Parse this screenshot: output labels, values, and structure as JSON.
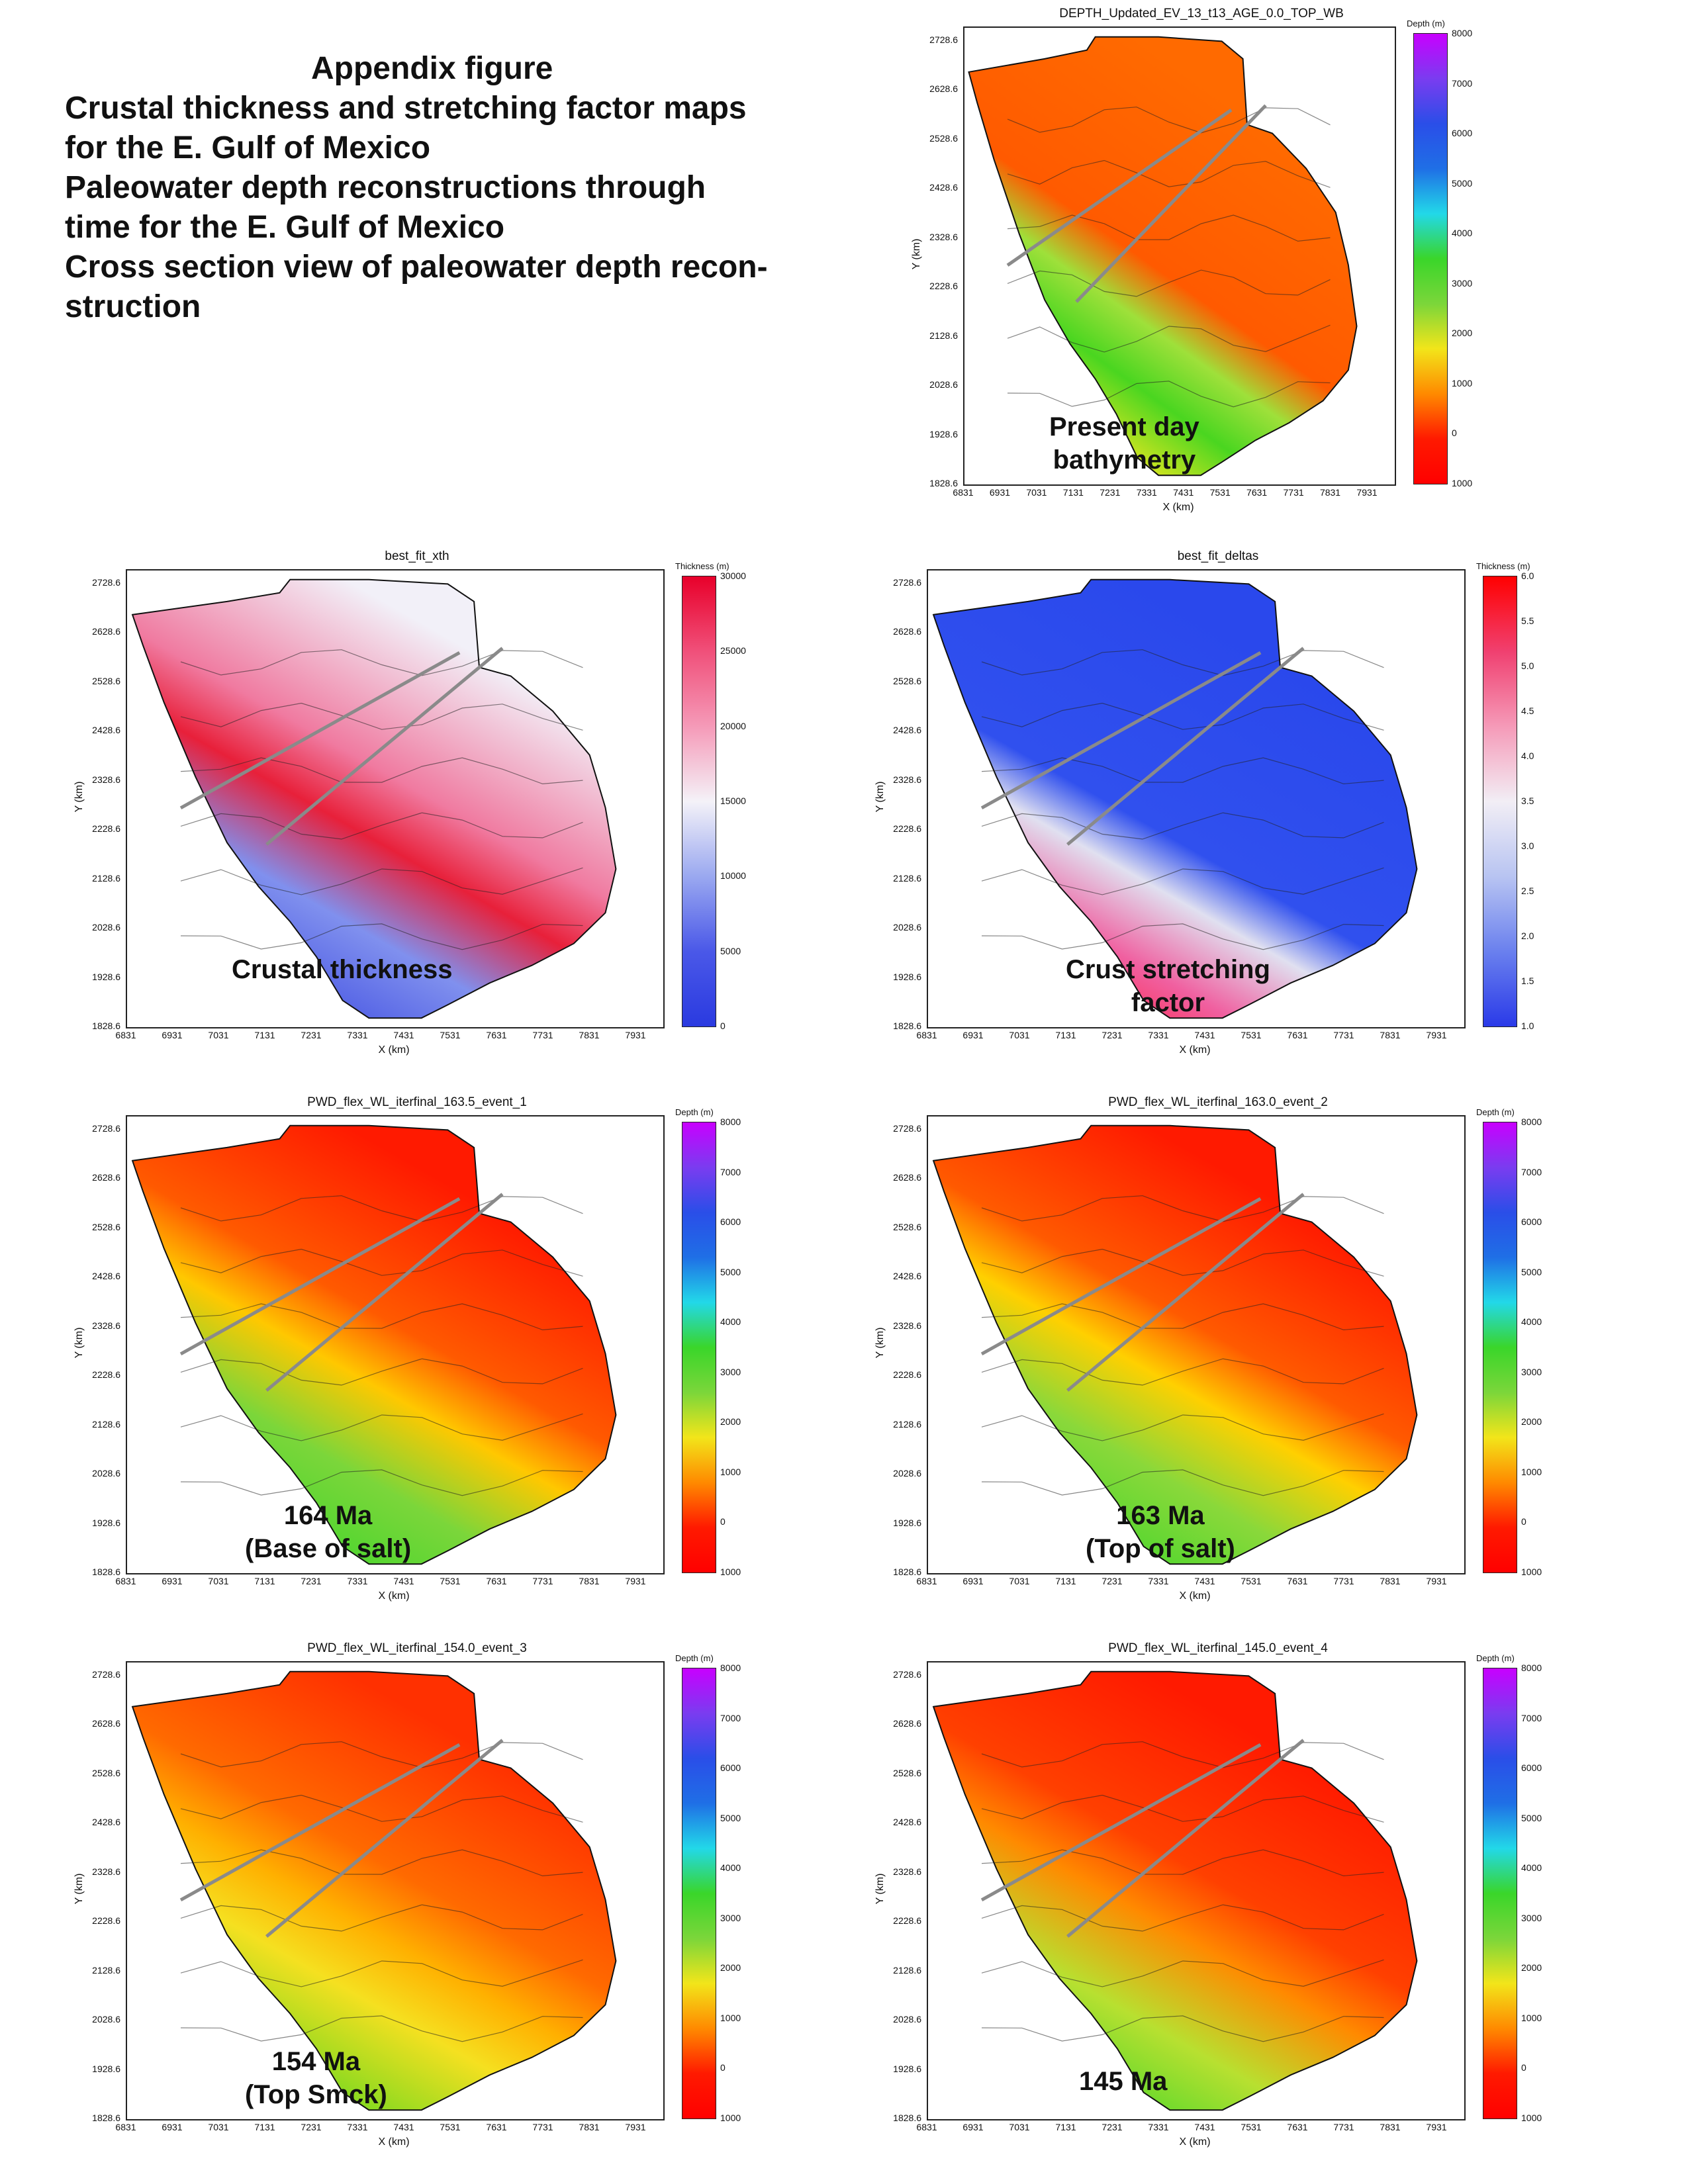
{
  "appendix": {
    "heading": "Appendix figure",
    "lines": [
      "Crustal thickness and stretching factor maps",
      "for the E. Gulf of Mexico",
      "Paleowater depth reconstructions through",
      "time for the E. Gulf of Mexico",
      "Cross section view of paleowater depth recon-",
      "struction"
    ]
  },
  "axes": {
    "xlabel": "X (km)",
    "ylabel": "Y (km)",
    "xticks": [
      "6831",
      "6931",
      "7031",
      "7131",
      "7231",
      "7331",
      "7431",
      "7531",
      "7631",
      "7731",
      "7831",
      "7931"
    ],
    "yticks": [
      "2728.6",
      "2628.6",
      "2528.6",
      "2428.6",
      "2328.6",
      "2228.6",
      "2128.6",
      "2028.6",
      "1928.6",
      "1828.6"
    ]
  },
  "colorbars": {
    "depth": {
      "label": "Depth (m)",
      "ticks": [
        "8000",
        "7000",
        "6000",
        "5000",
        "4000",
        "3000",
        "2000",
        "1000",
        "0",
        "1000"
      ]
    },
    "thickness": {
      "label": "Thickness (m)",
      "ticks": [
        "30000",
        "25000",
        "20000",
        "15000",
        "10000",
        "5000",
        "0"
      ]
    },
    "stretch": {
      "label": "Thickness (m)",
      "ticks": [
        "6.0",
        "5.5",
        "5.0",
        "4.5",
        "4.0",
        "3.5",
        "3.0",
        "2.5",
        "2.0",
        "1.5",
        "1.0"
      ]
    }
  },
  "panels": [
    {
      "id": "bathy",
      "title": "DEPTH_Updated_EV_13_t13_AGE_0.0_TOP_WB",
      "cb": "depth",
      "annot": [
        "Present day",
        "bathymetry"
      ]
    },
    {
      "id": "xth",
      "title": "best_fit_xth",
      "cb": "thickness",
      "annot": [
        "Crustal thickness"
      ]
    },
    {
      "id": "deltas",
      "title": "best_fit_deltas",
      "cb": "stretch",
      "annot": [
        "Crust stretching",
        "factor"
      ]
    },
    {
      "id": "e1",
      "title": "PWD_flex_WL_iterfinal_163.5_event_1",
      "cb": "depth",
      "annot": [
        "164 Ma",
        "(Base of salt)"
      ]
    },
    {
      "id": "e2",
      "title": "PWD_flex_WL_iterfinal_163.0_event_2",
      "cb": "depth",
      "annot": [
        "163 Ma",
        "(Top of salt)"
      ]
    },
    {
      "id": "e3",
      "title": "PWD_flex_WL_iterfinal_154.0_event_3",
      "cb": "depth",
      "annot": [
        "154 Ma",
        "(Top Smck)"
      ]
    },
    {
      "id": "e4",
      "title": "PWD_flex_WL_iterfinal_145.0_event_4",
      "cb": "depth",
      "annot": [
        "145 Ma"
      ]
    }
  ],
  "colors": {
    "depth_scale": [
      "#c800ff",
      "#7a3cf0",
      "#2a4ee8",
      "#1f6fe6",
      "#22d8e8",
      "#3ad62a",
      "#7bd63a",
      "#f2e51a",
      "#ff8a00",
      "#ff1a00",
      "#ff0000"
    ],
    "thickness_scale": [
      "#e8002a",
      "#f0507a",
      "#f59ab8",
      "#f4f2f8",
      "#9aa8f0",
      "#4a58e8",
      "#2a3ae0"
    ],
    "stretch_scale": [
      "#ff0000",
      "#f04070",
      "#f59ab8",
      "#f2eef5",
      "#b8c4f2",
      "#6a80ee",
      "#2a3ae8"
    ],
    "profile_line": "#8a8a8a"
  }
}
